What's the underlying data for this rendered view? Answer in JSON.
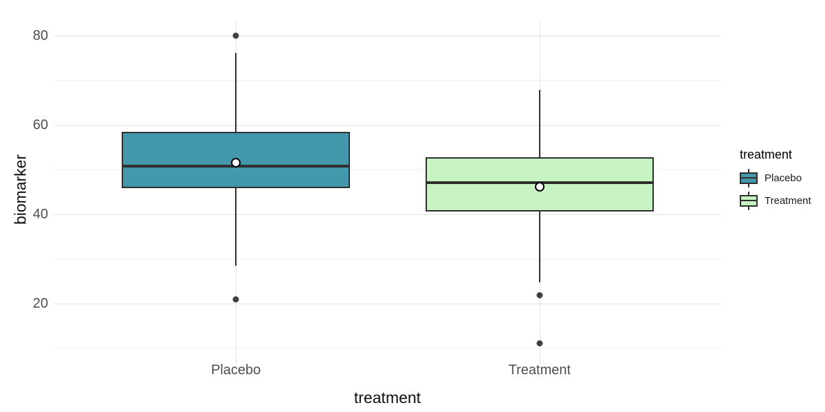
{
  "chart_data": {
    "type": "box",
    "title": "",
    "xlabel": "treatment",
    "ylabel": "biomarker",
    "categories": [
      "Placebo",
      "Treatment"
    ],
    "y_axis": {
      "ticks_major": [
        80,
        60,
        40,
        20
      ],
      "ticks_minor": [
        70,
        50,
        30,
        10
      ],
      "ylim": [
        7.7,
        83.4
      ]
    },
    "grid": "on",
    "legend": {
      "title": "treatment",
      "position": "right",
      "entries": [
        "Placebo",
        "Treatment"
      ]
    },
    "series": [
      {
        "name": "Placebo",
        "fill": "#4398ab",
        "stats": {
          "whisker_low": 28.5,
          "q1": 45.8,
          "median": 50.8,
          "mean": 51.5,
          "q3": 58.4,
          "whisker_high": 76.2
        },
        "outliers": [
          80,
          21
        ]
      },
      {
        "name": "Treatment",
        "fill": "#c7f2c1",
        "stats": {
          "whisker_low": 24.8,
          "q1": 40.6,
          "median": 47.1,
          "mean": 46.2,
          "q3": 52.8,
          "whisker_high": 67.8
        },
        "outliers": [
          21.8,
          11.1
        ]
      }
    ],
    "colors": {
      "stroke": "#2e2e2e",
      "outlier": "#3f3f3f",
      "mean_fill": "#ffffff",
      "grid_major": "#e3e3e3",
      "grid_minor": "#f1f1f1",
      "grid_vertical": "#e7e7e7",
      "tick_mark": "#d6d6d6",
      "tick_label": "#4d4d4d",
      "title": "#111111"
    }
  }
}
